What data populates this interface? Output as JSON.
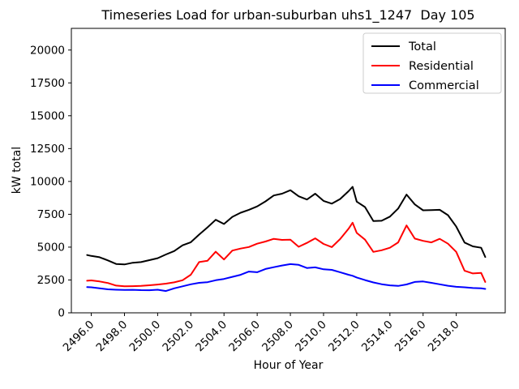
{
  "chart_data": {
    "type": "line",
    "title": "Timeseries Load for urban-suburban uhs1_1247  Day 105",
    "xlabel": "Hour of Year",
    "ylabel": "kW total",
    "grid": false,
    "legend_position": "upper right",
    "xlim": [
      2494.8,
      2520.95
    ],
    "ylim": [
      0,
      21650
    ],
    "xticks": [
      2496,
      2498,
      2500,
      2502,
      2504,
      2506,
      2508,
      2510,
      2512,
      2514,
      2516,
      2518
    ],
    "xtick_labels": [
      "2496.0",
      "2498.0",
      "2500.0",
      "2502.0",
      "2504.0",
      "2506.0",
      "2508.0",
      "2510.0",
      "2512.0",
      "2514.0",
      "2516.0",
      "2518.0"
    ],
    "yticks": [
      0,
      2500,
      5000,
      7500,
      10000,
      12500,
      15000,
      17500,
      20000
    ],
    "ytick_labels": [
      "0",
      "2500",
      "5000",
      "7500",
      "10000",
      "12500",
      "15000",
      "17500",
      "20000"
    ],
    "x": [
      2495.75,
      2496.0,
      2496.5,
      2497.0,
      2497.5,
      2498.0,
      2498.5,
      2499.0,
      2499.5,
      2500.0,
      2500.5,
      2501.0,
      2501.5,
      2502.0,
      2502.5,
      2503.0,
      2503.5,
      2504.0,
      2504.5,
      2505.0,
      2505.5,
      2506.0,
      2506.5,
      2507.0,
      2507.5,
      2508.0,
      2508.5,
      2509.0,
      2509.5,
      2510.0,
      2510.5,
      2511.0,
      2511.5,
      2511.75,
      2512.0,
      2512.5,
      2513.0,
      2513.5,
      2514.0,
      2514.5,
      2515.0,
      2515.5,
      2516.0,
      2516.5,
      2517.0,
      2517.5,
      2518.0,
      2518.5,
      2519.0,
      2519.5,
      2519.75
    ],
    "series": [
      {
        "name": "Total",
        "color": "#000000",
        "values": [
          4400,
          4330,
          4230,
          3990,
          3720,
          3680,
          3810,
          3860,
          4010,
          4160,
          4440,
          4700,
          5140,
          5370,
          5950,
          6500,
          7080,
          6760,
          7300,
          7620,
          7840,
          8100,
          8480,
          8930,
          9070,
          9330,
          8870,
          8620,
          9070,
          8520,
          8310,
          8660,
          9250,
          9590,
          8460,
          8050,
          6980,
          7010,
          7320,
          7940,
          9000,
          8250,
          7800,
          7820,
          7840,
          7430,
          6560,
          5350,
          5060,
          4950,
          4250
        ]
      },
      {
        "name": "Residential",
        "color": "#ff0000",
        "values": [
          2440,
          2470,
          2390,
          2270,
          2070,
          2020,
          2030,
          2050,
          2100,
          2150,
          2220,
          2320,
          2480,
          2900,
          3860,
          3960,
          4650,
          4060,
          4740,
          4890,
          5010,
          5260,
          5430,
          5630,
          5550,
          5570,
          5030,
          5320,
          5670,
          5240,
          5000,
          5610,
          6390,
          6860,
          6080,
          5570,
          4640,
          4760,
          4950,
          5360,
          6650,
          5650,
          5480,
          5360,
          5630,
          5260,
          4640,
          3200,
          3000,
          3040,
          2350
        ]
      },
      {
        "name": "Commercial",
        "color": "#0000ff",
        "values": [
          1960,
          1940,
          1870,
          1790,
          1760,
          1740,
          1750,
          1730,
          1720,
          1760,
          1660,
          1860,
          2020,
          2170,
          2280,
          2330,
          2480,
          2580,
          2740,
          2890,
          3140,
          3090,
          3340,
          3470,
          3600,
          3710,
          3650,
          3410,
          3460,
          3310,
          3270,
          3090,
          2900,
          2820,
          2690,
          2490,
          2310,
          2180,
          2090,
          2050,
          2160,
          2350,
          2390,
          2280,
          2170,
          2060,
          1980,
          1940,
          1890,
          1860,
          1820
        ]
      }
    ]
  }
}
